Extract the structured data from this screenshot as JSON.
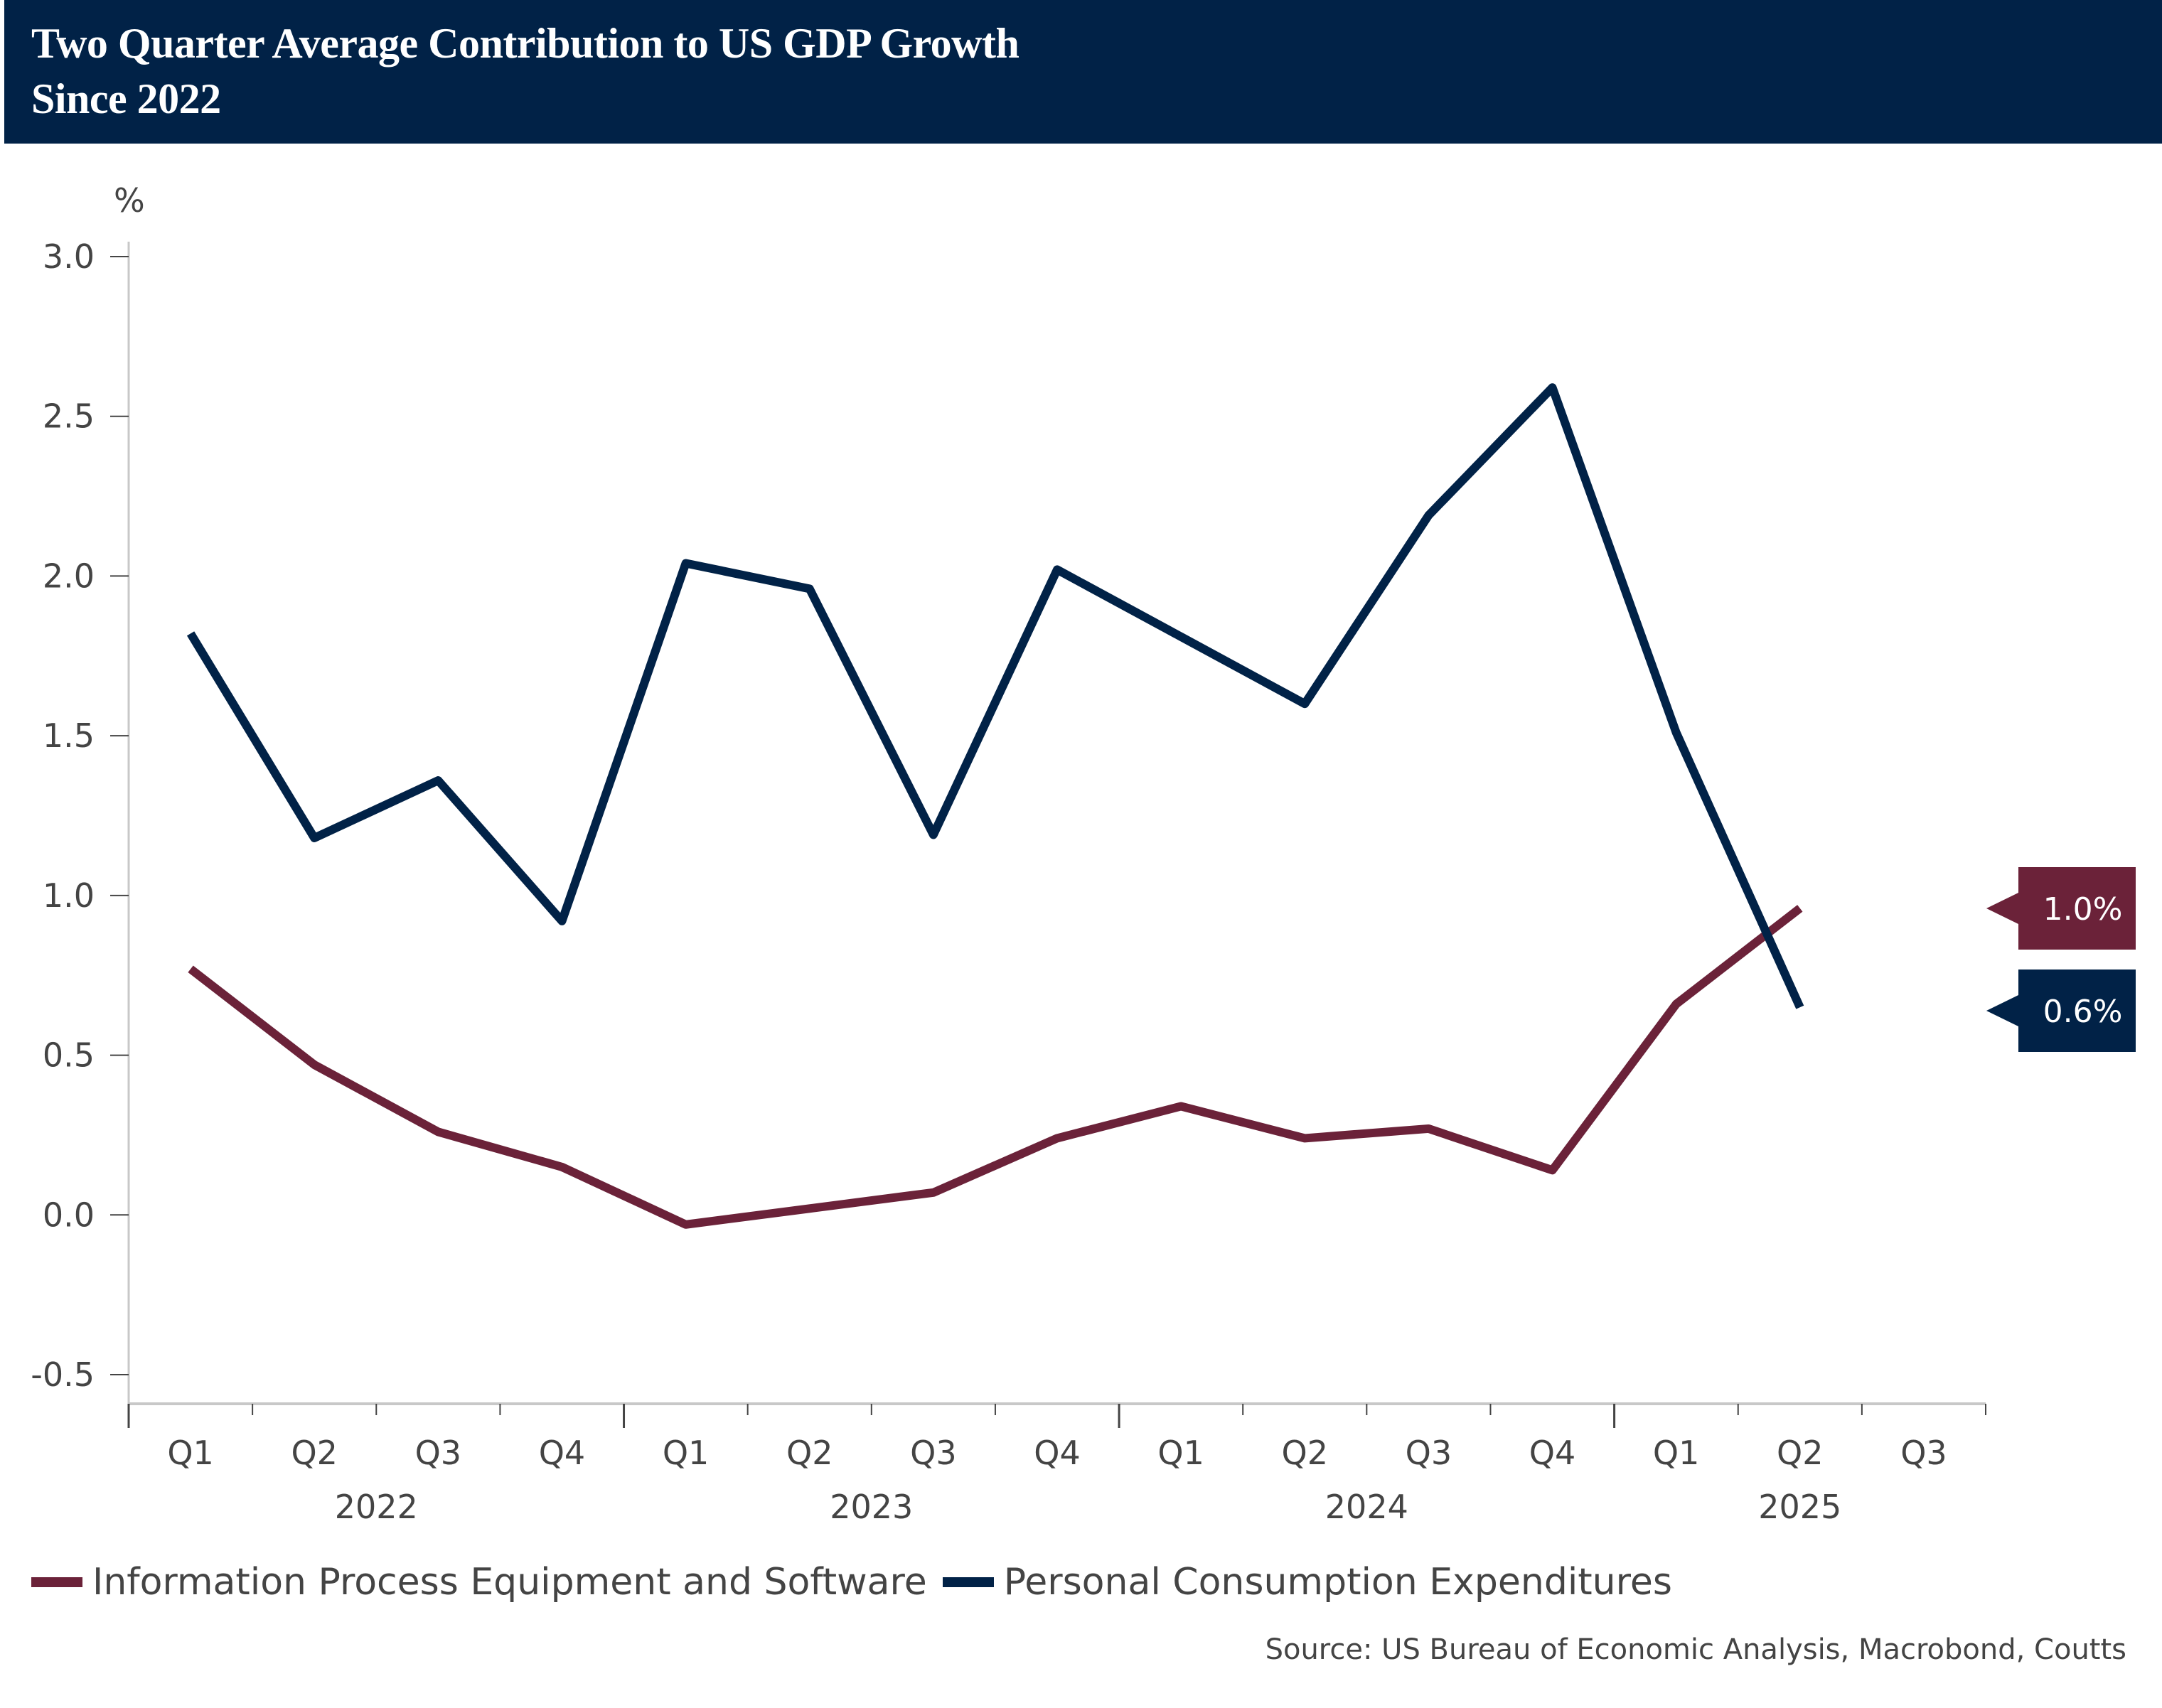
{
  "header": {
    "title_line1": "Two Quarter Average Contribution to US GDP Growth",
    "title_line2": "Since 2022"
  },
  "chart_data": {
    "type": "line",
    "title": "Two Quarter Average Contribution to US GDP Growth Since 2022",
    "ylabel": "%",
    "xlabel": "",
    "ylim": [
      -0.5,
      3.0
    ],
    "yticks": [
      "3.0",
      "2.5",
      "2.0",
      "1.5",
      "1.0",
      "0.5",
      "0.0",
      "-0.5"
    ],
    "ytick_values": [
      3.0,
      2.5,
      2.0,
      1.5,
      1.0,
      0.5,
      0.0,
      -0.5
    ],
    "grid": false,
    "categories": [
      "Q1",
      "Q2",
      "Q3",
      "Q4",
      "Q1",
      "Q2",
      "Q3",
      "Q4",
      "Q1",
      "Q2",
      "Q3",
      "Q4",
      "Q1",
      "Q2",
      "Q3"
    ],
    "years": [
      {
        "label": "2022",
        "center_index": 1.5
      },
      {
        "label": "2023",
        "center_index": 5.5
      },
      {
        "label": "2024",
        "center_index": 9.5
      },
      {
        "label": "2025",
        "center_index": 13
      }
    ],
    "series": [
      {
        "name": "Information Process Equipment and Software",
        "color": "#6b2239",
        "values": [
          0.77,
          0.47,
          0.26,
          0.15,
          -0.03,
          0.02,
          0.07,
          0.24,
          0.34,
          0.24,
          0.27,
          0.14,
          0.66,
          0.96
        ],
        "end_label": "1.0%"
      },
      {
        "name": "Personal Consumption Expenditures",
        "color": "#012247",
        "values": [
          1.82,
          1.18,
          1.36,
          0.92,
          2.04,
          1.96,
          1.19,
          2.02,
          1.81,
          1.6,
          2.19,
          2.59,
          1.51,
          0.65
        ],
        "end_label": "0.6%"
      }
    ],
    "legend_position": "bottom-left"
  },
  "source": "Source: US Bureau of Economic Analysis, Macrobond, Coutts"
}
